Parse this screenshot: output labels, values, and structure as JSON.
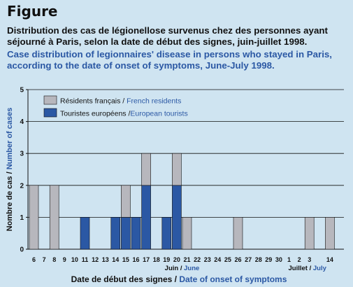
{
  "figure_label": "Figure",
  "chart_data": {
    "type": "bar",
    "stacked": true,
    "title_fr": "Distribution des cas de légionellose survenus chez des personnes ayant séjourné à Paris, selon la date de début des signes, juin-juillet 1998.",
    "title_en": "Case distribution of legionnaires' disease in persons who stayed in Paris, according to the date of onset of symptoms, June-July 1998.",
    "ylabel_fr": "Nombre de cas",
    "ylabel_en": "Number of cases",
    "xlabel_fr": "Date de début des signes",
    "xlabel_en": "Date of onset of symptoms",
    "ylim": [
      0,
      5
    ],
    "yticks": [
      0,
      1,
      2,
      3,
      4,
      5
    ],
    "grid": true,
    "legend_position": "top-left",
    "categories": [
      "6",
      "7",
      "8",
      "9",
      "10",
      "11",
      "12",
      "13",
      "14",
      "15",
      "16",
      "17",
      "18",
      "19",
      "20",
      "21",
      "22",
      "23",
      "24",
      "25",
      "26",
      "27",
      "28",
      "29",
      "30",
      "1",
      "2",
      "3",
      "",
      "14"
    ],
    "category_groups": [
      {
        "label_fr": "Juin",
        "label_en": "June",
        "center_category": 15
      },
      {
        "label_fr": "Juillet",
        "label_en": "July",
        "center_category": 27
      }
    ],
    "series": [
      {
        "name_fr": "Touristes européens",
        "name_en": "European tourists",
        "color": "#2b58a4",
        "values": [
          0,
          0,
          0,
          0,
          0,
          1,
          0,
          0,
          1,
          1,
          1,
          2,
          0,
          1,
          2,
          0,
          0,
          0,
          0,
          0,
          0,
          0,
          0,
          0,
          0,
          0,
          0,
          0,
          0,
          0
        ]
      },
      {
        "name_fr": "Résidents français",
        "name_en": "French residents",
        "color": "#b7b7bd",
        "values": [
          2,
          0,
          2,
          0,
          0,
          0,
          0,
          0,
          0,
          1,
          0,
          1,
          0,
          0,
          1,
          1,
          0,
          0,
          0,
          0,
          1,
          0,
          0,
          0,
          0,
          0,
          0,
          1,
          0,
          1
        ]
      }
    ]
  }
}
